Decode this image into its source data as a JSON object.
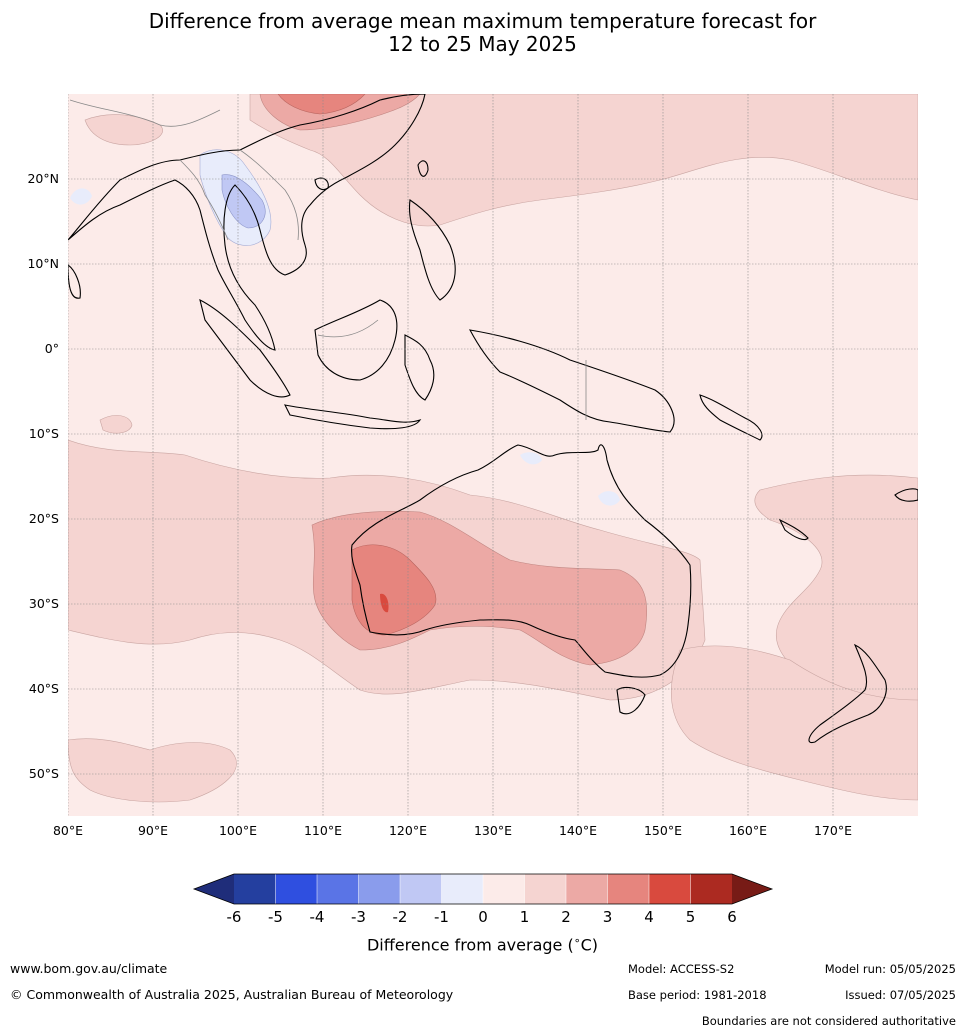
{
  "title_line1": "Difference from average mean maximum temperature forecast for",
  "title_line2": "12 to 25 May 2025",
  "map": {
    "lat_labels": [
      "20°N",
      "10°N",
      "0°",
      "10°S",
      "20°S",
      "30°S",
      "40°S",
      "50°S"
    ],
    "lon_labels": [
      "80°E",
      "90°E",
      "100°E",
      "110°E",
      "120°E",
      "130°E",
      "140°E",
      "150°E",
      "160°E",
      "170°E"
    ],
    "lat_range": [
      -55,
      30
    ],
    "lon_range": [
      80,
      180
    ],
    "grid": true
  },
  "colorbar": {
    "ticks": [
      "-6",
      "-5",
      "-4",
      "-3",
      "-2",
      "-1",
      "0",
      "1",
      "2",
      "3",
      "4",
      "5",
      "6"
    ],
    "colors": [
      "#243f9f",
      "#2f4fe0",
      "#5a74e6",
      "#8a9cec",
      "#c0c8f4",
      "#e8ecfb",
      "#fcebe9",
      "#f5d4d1",
      "#eca9a5",
      "#e6857e",
      "#d94a3e",
      "#ac2a21"
    ],
    "under_color": "#1f2d7a",
    "over_color": "#771b16",
    "label": "Difference from average (",
    "label_symbol": "∘",
    "label_unit": "C)"
  },
  "footer": {
    "website": "www.bom.gov.au/climate",
    "copyright": "© Commonwealth of Australia 2025, Australian Bureau of Meteorology",
    "model": "Model: ACCESS-S2",
    "model_run": "Model run: 05/05/2025",
    "base_period": "Base period: 1981-2018",
    "issued": "Issued: 07/05/2025",
    "disclaimer": "Boundaries are not considered authoritative"
  }
}
